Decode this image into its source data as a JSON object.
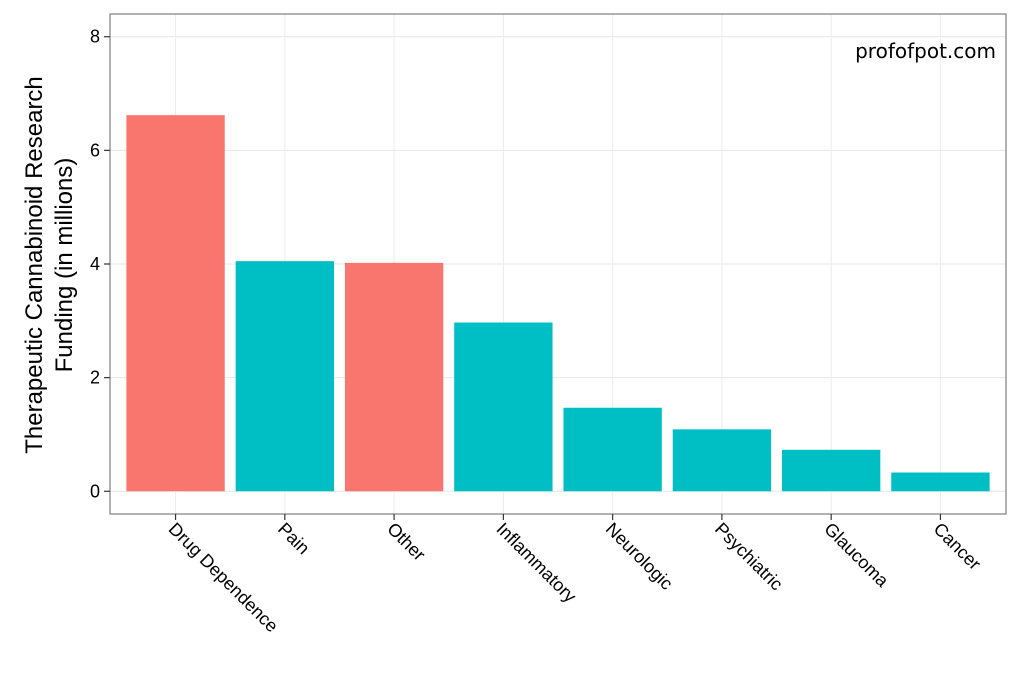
{
  "chart_data": {
    "type": "bar",
    "categories": [
      "Drug Dependence",
      "Pain",
      "Other",
      "Inflammatory",
      "Neurologic",
      "Psychiatric",
      "Glaucoma",
      "Cancer"
    ],
    "values": [
      6.62,
      4.05,
      4.02,
      2.97,
      1.47,
      1.09,
      0.73,
      0.33
    ],
    "bar_colors": [
      "#F8766D",
      "#00BFC4",
      "#F8766D",
      "#00BFC4",
      "#00BFC4",
      "#00BFC4",
      "#00BFC4",
      "#00BFC4"
    ],
    "title": "",
    "xlabel": "",
    "ylabel_lines": [
      "Therapeutic Cannabinoid Research",
      "Funding (in millions)"
    ],
    "ylim": [
      -0.4,
      8.4
    ],
    "yticks": [
      0,
      2,
      4,
      6,
      8
    ],
    "grid": true,
    "legend": "none",
    "annotation": "profofpot.com"
  }
}
